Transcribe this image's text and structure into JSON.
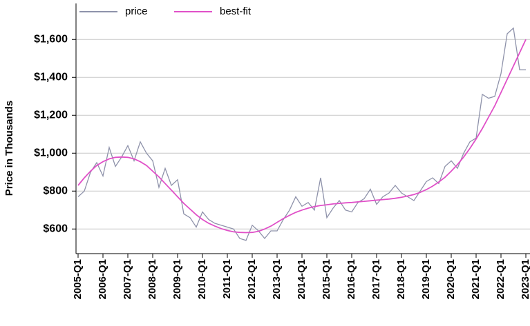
{
  "chart_data": {
    "type": "line",
    "ylabel": "Price in Thousands",
    "categories": [
      "2005-Q1",
      null,
      null,
      null,
      "2006-Q1",
      null,
      null,
      null,
      "2007-Q1",
      null,
      null,
      null,
      "2008-Q1",
      null,
      null,
      null,
      "2009-Q1",
      null,
      null,
      null,
      "2010-Q1",
      null,
      null,
      null,
      "2011-Q1",
      null,
      null,
      null,
      "2012-Q1",
      null,
      null,
      null,
      "2013-Q1",
      null,
      null,
      null,
      "2014-Q1",
      null,
      null,
      null,
      "2015-Q1",
      null,
      null,
      null,
      "2016-Q1",
      null,
      null,
      null,
      "2017-Q1",
      null,
      null,
      null,
      "2018-Q1",
      null,
      null,
      null,
      "2019-Q1",
      null,
      null,
      null,
      "2020-Q1",
      null,
      null,
      null,
      "2021-Q1",
      null,
      null,
      null,
      "2022-Q1",
      null,
      null,
      null,
      "2023-Q1"
    ],
    "series": [
      {
        "name": "price",
        "color": "#8e92aa",
        "values": [
          770,
          800,
          900,
          950,
          880,
          1030,
          930,
          980,
          1040,
          960,
          1060,
          1000,
          960,
          820,
          920,
          830,
          860,
          680,
          660,
          610,
          690,
          650,
          630,
          620,
          610,
          600,
          550,
          540,
          620,
          590,
          550,
          590,
          590,
          650,
          700,
          770,
          720,
          740,
          700,
          870,
          660,
          710,
          750,
          700,
          690,
          740,
          760,
          810,
          730,
          770,
          790,
          830,
          790,
          770,
          750,
          800,
          850,
          870,
          840,
          930,
          960,
          920,
          1000,
          1060,
          1080,
          1310,
          1290,
          1300,
          1420,
          1630,
          1660,
          1440,
          1440
        ]
      },
      {
        "name": "best-fit",
        "color": "#e050c8",
        "values": [
          830,
          870,
          905,
          935,
          955,
          970,
          978,
          980,
          978,
          970,
          955,
          935,
          905,
          875,
          840,
          805,
          770,
          735,
          705,
          675,
          650,
          630,
          615,
          602,
          592,
          585,
          582,
          581,
          582,
          588,
          600,
          615,
          635,
          655,
          672,
          688,
          700,
          710,
          718,
          724,
          728,
          732,
          735,
          738,
          740,
          743,
          746,
          749,
          752,
          755,
          758,
          762,
          767,
          774,
          782,
          793,
          808,
          826,
          848,
          873,
          905,
          940,
          980,
          1025,
          1075,
          1130,
          1190,
          1250,
          1320,
          1390,
          1460,
          1530,
          1600
        ]
      }
    ],
    "ylim": [
      470,
      1790
    ],
    "yticks": [
      {
        "value": 600,
        "label": "$600"
      },
      {
        "value": 800,
        "label": "$800"
      },
      {
        "value": 1000,
        "label": "$1,000"
      },
      {
        "value": 1200,
        "label": "$1,200"
      },
      {
        "value": 1400,
        "label": "$1,400"
      },
      {
        "value": 1600,
        "label": "$1,600"
      }
    ],
    "grid": true,
    "legend": "top-left"
  }
}
